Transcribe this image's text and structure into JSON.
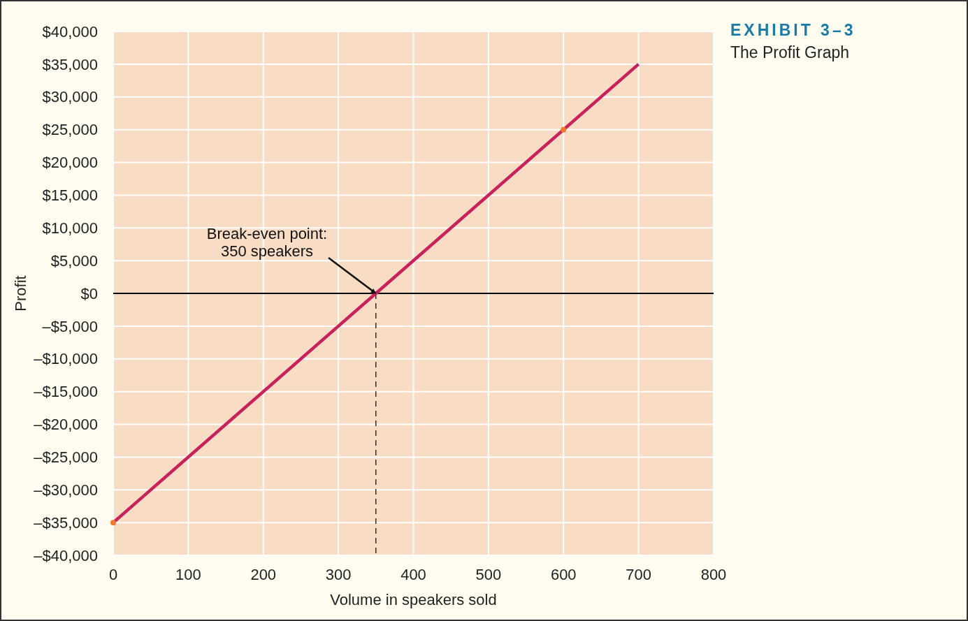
{
  "chart_data": {
    "type": "line",
    "title": "EXHIBIT 3–3",
    "subtitle": "The Profit Graph",
    "xlabel": "Volume in speakers sold",
    "ylabel": "Profit",
    "xlim": [
      0,
      800
    ],
    "xticks": [
      0,
      100,
      200,
      300,
      400,
      500,
      600,
      700,
      800
    ],
    "ylim": [
      -40000,
      40000
    ],
    "yticks": [
      {
        "value": -40000,
        "label": "–$40,000"
      },
      {
        "value": -35000,
        "label": "–$35,000"
      },
      {
        "value": -30000,
        "label": "–$30,000"
      },
      {
        "value": -25000,
        "label": "–$25,000"
      },
      {
        "value": -20000,
        "label": "–$20,000"
      },
      {
        "value": -15000,
        "label": "–$15,000"
      },
      {
        "value": -10000,
        "label": "–$10,000"
      },
      {
        "value": -5000,
        "label": "–$5,000"
      },
      {
        "value": 0,
        "label": "$0"
      },
      {
        "value": 5000,
        "label": "$5,000"
      },
      {
        "value": 10000,
        "label": "$10,000"
      },
      {
        "value": 15000,
        "label": "$15,000"
      },
      {
        "value": 20000,
        "label": "$20,000"
      },
      {
        "value": 25000,
        "label": "$25,000"
      },
      {
        "value": 30000,
        "label": "$30,000"
      },
      {
        "value": 35000,
        "label": "$35,000"
      },
      {
        "value": 40000,
        "label": "$40,000"
      }
    ],
    "grid": true,
    "series": [
      {
        "color": "#c8215b",
        "x": [
          0,
          350,
          700
        ],
        "values": [
          -35000,
          0,
          35000
        ]
      },
      {
        "type": "scatter",
        "color": "#f07a2a",
        "x": [
          0,
          600
        ],
        "values": [
          -35000,
          25000
        ]
      }
    ],
    "ref_lines": [
      {
        "axis": "y",
        "value": 0,
        "color": "#000000",
        "line_style": "solid"
      },
      {
        "axis": "x",
        "value": 350,
        "color": "#000000",
        "line_style": "dashed"
      }
    ],
    "annotations": [
      {
        "text": "Break-even point:\n350 speakers",
        "x": 350,
        "y": 0
      }
    ]
  }
}
